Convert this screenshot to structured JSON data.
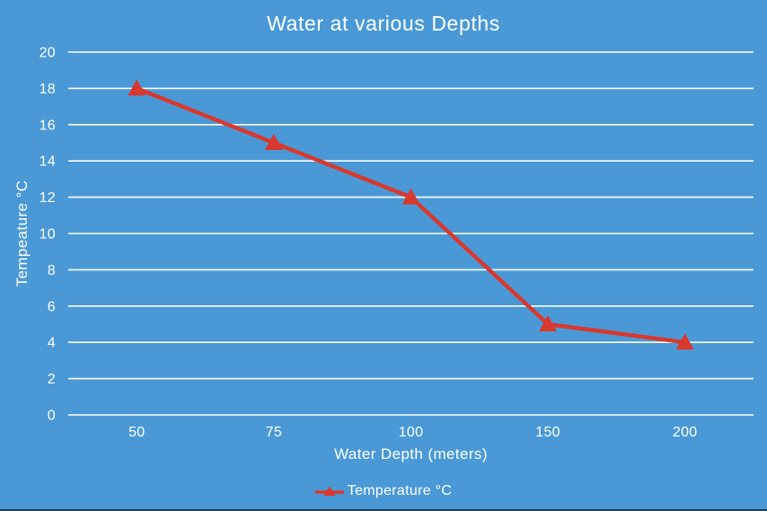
{
  "window": {
    "background_color": "#4A99D6",
    "bottom_edge_color": "#1D3C55",
    "text_color": "#FFFFFF"
  },
  "chart_data": {
    "type": "line",
    "title": "Water at various Depths",
    "xlabel": "Water Depth (meters)",
    "ylabel": "Tempeature °C",
    "categories": [
      "50",
      "75",
      "100",
      "150",
      "200"
    ],
    "series": [
      {
        "name": "Temperature °C",
        "values": [
          18,
          15,
          12,
          5,
          4
        ],
        "color": "#D9382D",
        "marker": "triangle"
      }
    ],
    "x_axis_type": "categorical-even-spacing",
    "yticks": [
      0,
      2,
      4,
      6,
      8,
      10,
      12,
      14,
      16,
      18,
      20
    ],
    "ylim": [
      0,
      20
    ],
    "grid": true,
    "gridline_color": "#FFFFFF",
    "axis_text_color": "#FFFFFF",
    "legend_position": "bottom-center"
  }
}
